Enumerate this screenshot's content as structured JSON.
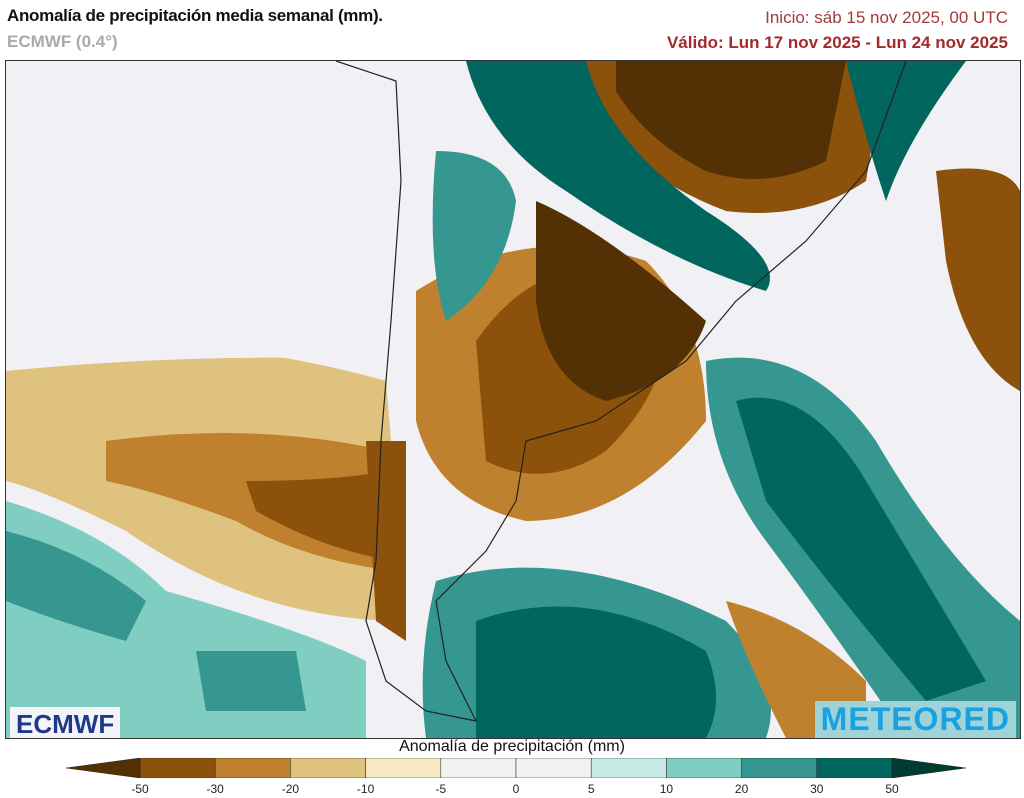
{
  "header": {
    "title": "Anomalía de precipitación media semanal (mm).",
    "model": "ECMWF (0.4°)",
    "init": "Inicio:  sáb 15 nov 2025, 00 UTC",
    "valid": "Válido: Lun 17 nov 2025 - Lun 24 nov 2025"
  },
  "logos": {
    "left": "ECMWF",
    "right": "METEORED"
  },
  "colorbar": {
    "title": "Anomalía de precipitación (mm)",
    "ticks": [
      "-50",
      "-30",
      "-20",
      "-10",
      "-5",
      "0",
      "5",
      "10",
      "20",
      "30",
      "50"
    ],
    "under_color": "#543005",
    "colors": [
      "#8c510a",
      "#bf812d",
      "#dfc27d",
      "#f6e8c3",
      "#f0f0f5",
      "#f0f0f5",
      "#c7eae5",
      "#80cdc1",
      "#35978f",
      "#01665e"
    ],
    "over_color": "#003c30"
  }
}
